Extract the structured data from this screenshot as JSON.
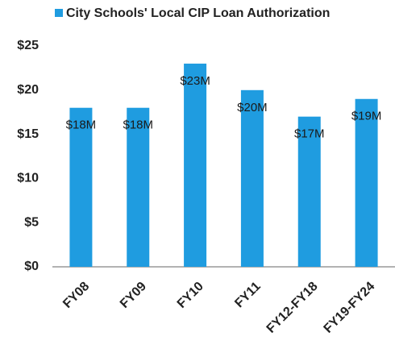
{
  "chart_data": {
    "type": "bar",
    "legend": "City Schools' Local CIP Loan Authorization",
    "categories": [
      "FY08",
      "FY09",
      "FY10",
      "FY11",
      "FY12-FY18",
      "FY19-FY24"
    ],
    "values": [
      18,
      18,
      23,
      20,
      17,
      19
    ],
    "value_labels": [
      "$18M",
      "$18M",
      "$23M",
      "$20M",
      "$17M",
      "$19M"
    ],
    "color": "#1f9ce0",
    "ylim": [
      0,
      25
    ],
    "yticks": [
      {
        "value": 0,
        "label": "$0"
      },
      {
        "value": 5,
        "label": "$5"
      },
      {
        "value": 10,
        "label": "$10"
      },
      {
        "value": 15,
        "label": "$15"
      },
      {
        "value": 20,
        "label": "$20"
      },
      {
        "value": 25,
        "label": "$25"
      }
    ],
    "grid": false
  }
}
